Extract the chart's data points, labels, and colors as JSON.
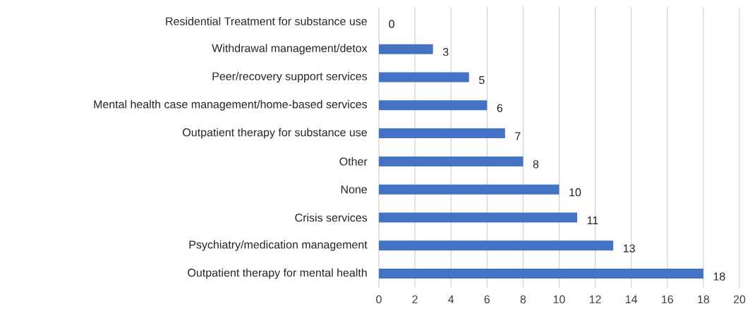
{
  "chart_data": {
    "type": "bar",
    "orientation": "horizontal",
    "categories": [
      "Residential Treatment for substance use",
      "Withdrawal management/detox",
      "Peer/recovery support services",
      "Mental health case management/home-based services",
      "Outpatient therapy for substance use",
      "Other",
      "None",
      "Crisis services",
      "Psychiatry/medication management",
      "Outpatient therapy for mental health"
    ],
    "values": [
      0,
      3,
      5,
      6,
      7,
      8,
      10,
      11,
      13,
      18
    ],
    "color": "#4472c4",
    "xlim": [
      0,
      20
    ],
    "xticks": [
      0,
      2,
      4,
      6,
      8,
      10,
      12,
      14,
      16,
      18,
      20
    ],
    "grid": "x",
    "data_labels": true
  }
}
